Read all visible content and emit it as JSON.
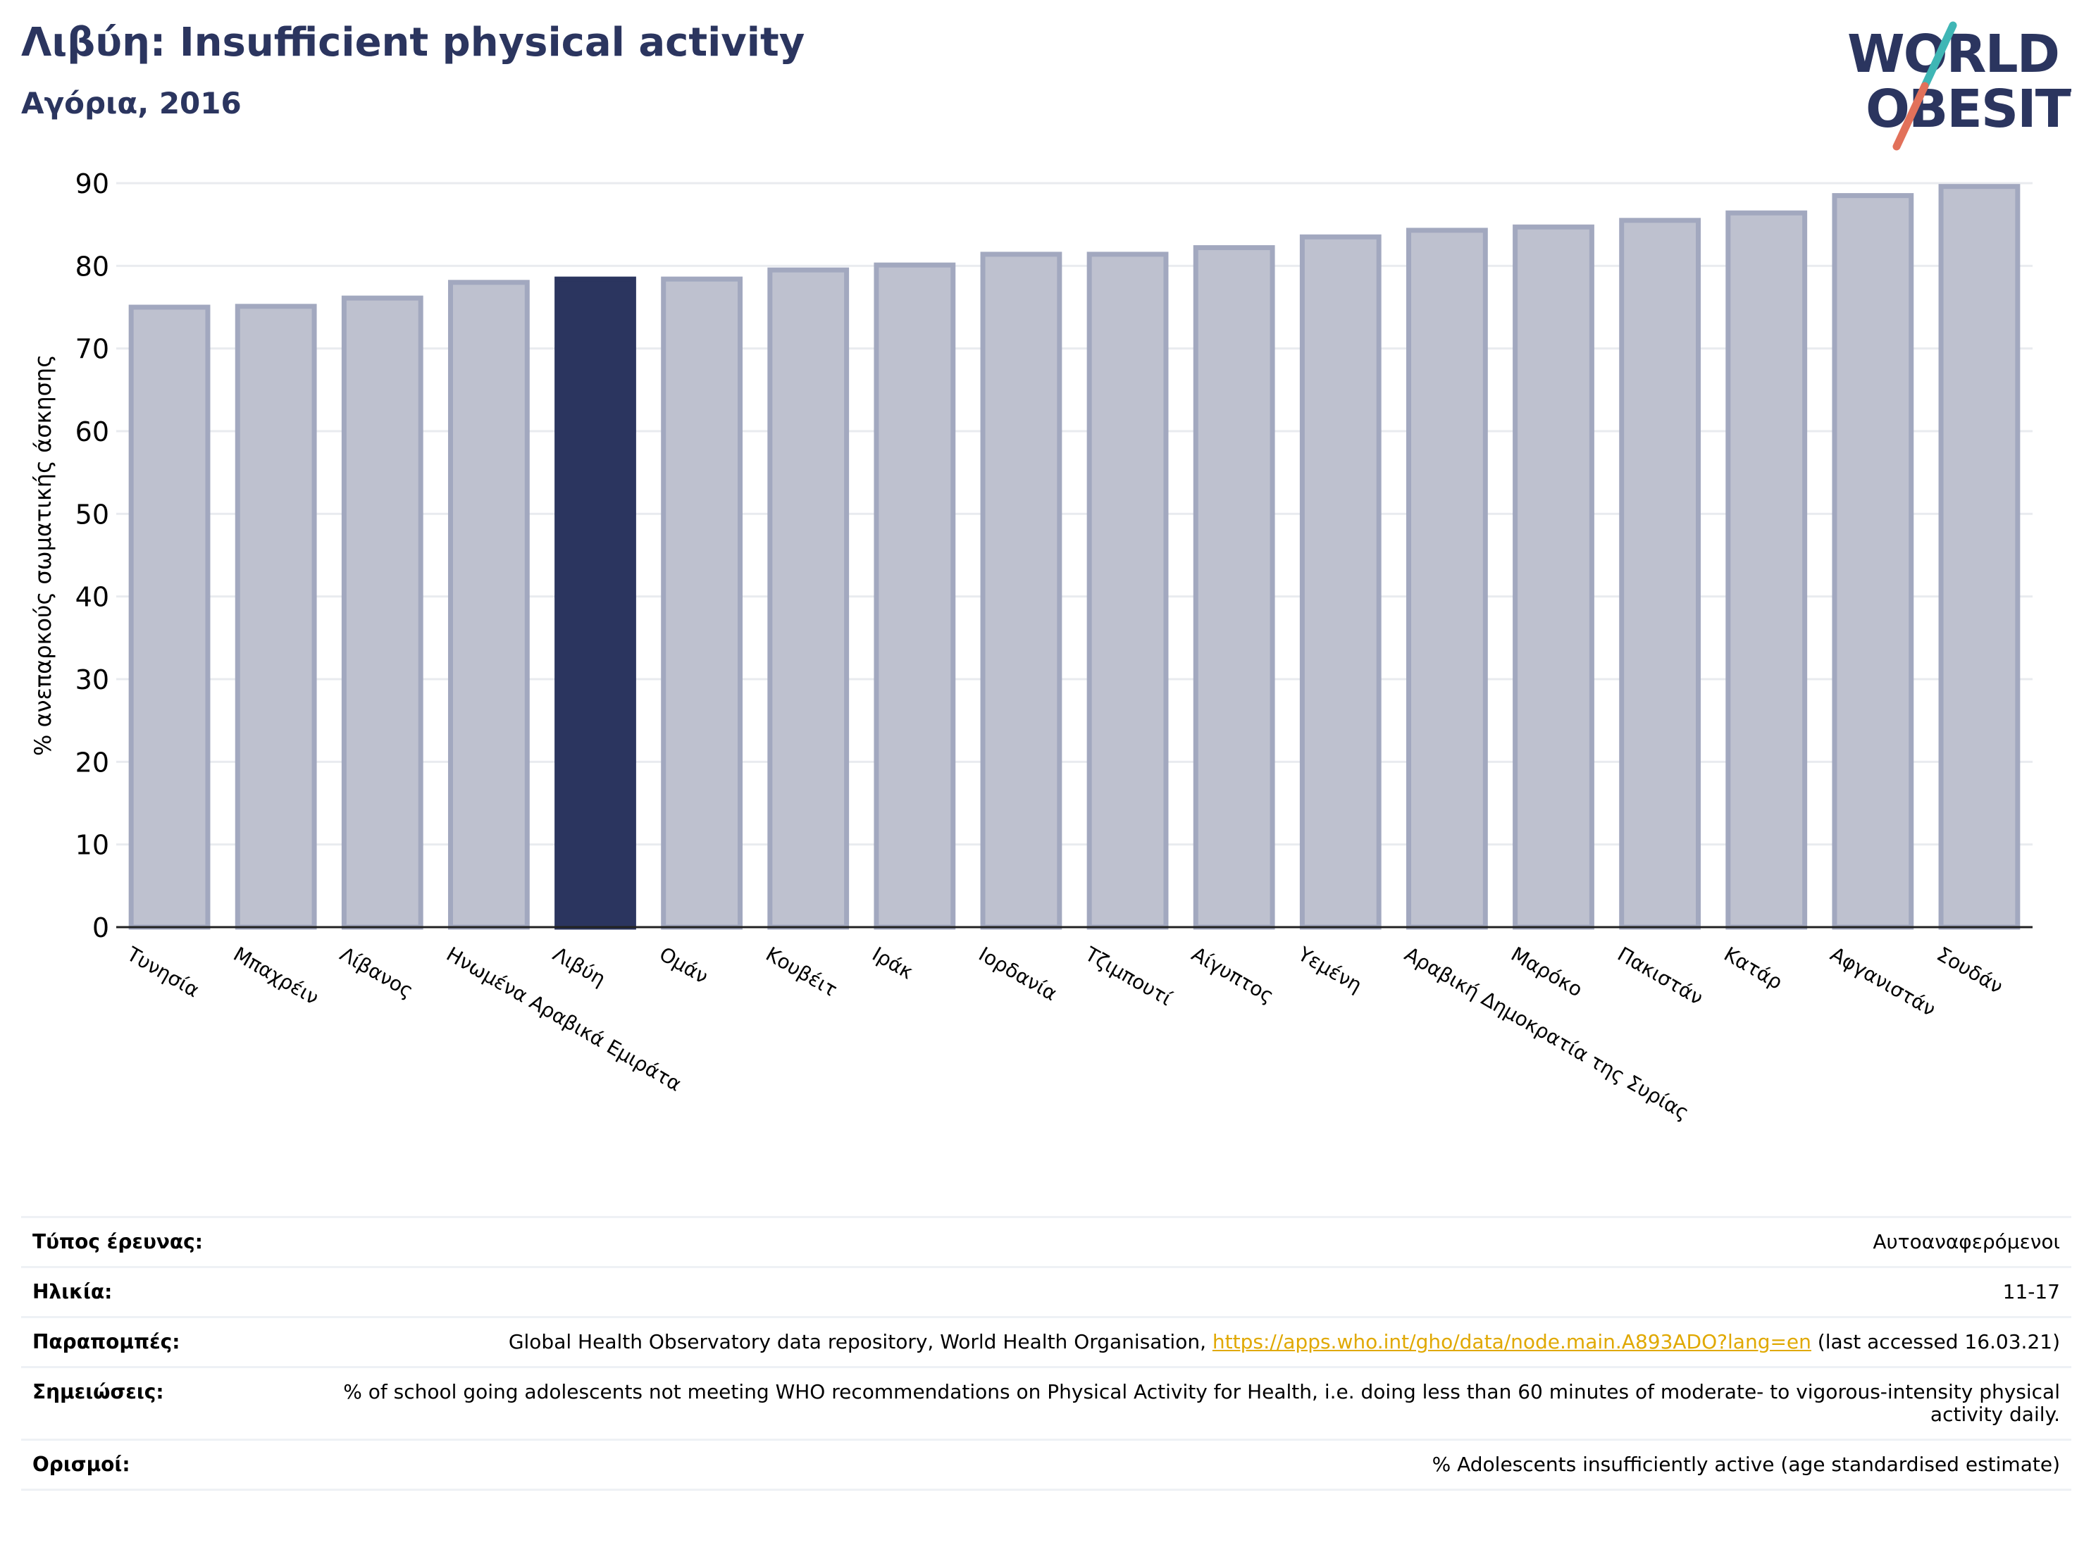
{
  "header": {
    "title": "Λιβύη: Insufficient physical activity",
    "subtitle": "Αγόρια, 2016"
  },
  "logo": {
    "line1": "WORLD",
    "line2": "OBESITY"
  },
  "colors": {
    "highlight": "#2b355f",
    "bar_fill": "#bec1cf",
    "bar_stroke": "#a2a8bf",
    "grid": "#e9ebef",
    "axis": "#222222",
    "logo_text": "#2b355f",
    "logo_teal": "#3fb6b5",
    "logo_red": "#e2715a"
  },
  "chart_data": {
    "type": "bar",
    "title": "",
    "xlabel": "",
    "ylabel": "% ανεπαρκούς σωματικής άσκησης",
    "ylim": [
      0,
      90
    ],
    "yticks": [
      0,
      10,
      20,
      30,
      40,
      50,
      60,
      70,
      80,
      90
    ],
    "grid": true,
    "highlight_category": "Λιβύη",
    "categories": [
      "Τυνησία",
      "Μπαχρέιν",
      "Λίβανος",
      "Ηνωμένα Αραβικά Εμιράτα",
      "Λιβύη",
      "Ομάν",
      "Κουβέιτ",
      "Ιράκ",
      "Ιορδανία",
      "Τζιμπουτί",
      "Αίγυπτος",
      "Υεμένη",
      "Αραβική Δημοκρατία της Συρίας",
      "Μαρόκο",
      "Πακιστάν",
      "Κατάρ",
      "Αφγανιστάν",
      "Σουδάν"
    ],
    "values": [
      75.0,
      75.1,
      76.1,
      78.0,
      78.4,
      78.4,
      79.5,
      80.1,
      81.4,
      81.4,
      82.2,
      83.5,
      84.3,
      84.7,
      85.5,
      86.4,
      88.5,
      89.6
    ]
  },
  "info": [
    {
      "label": "Τύπος έρευνας:",
      "value": "Αυτοαναφερόμενοι"
    },
    {
      "label": "Ηλικία:",
      "value": "11-17"
    },
    {
      "label": "Παραπομπές:",
      "value": "Global Health Observatory data repository, World Health Organisation, ",
      "link": "https://apps.who.int/gho/data/node.main.A893ADO?lang=en",
      "value_after": " (last accessed 16.03.21)"
    },
    {
      "label": "Σημειώσεις:",
      "value": "% of school going adolescents not meeting WHO recommendations on Physical Activity for Health, i.e. doing less than 60 minutes of moderate- to vigorous-intensity physical activity daily."
    },
    {
      "label": "Ορισμοί:",
      "value": "% Adolescents insufficiently active (age standardised estimate)"
    }
  ]
}
